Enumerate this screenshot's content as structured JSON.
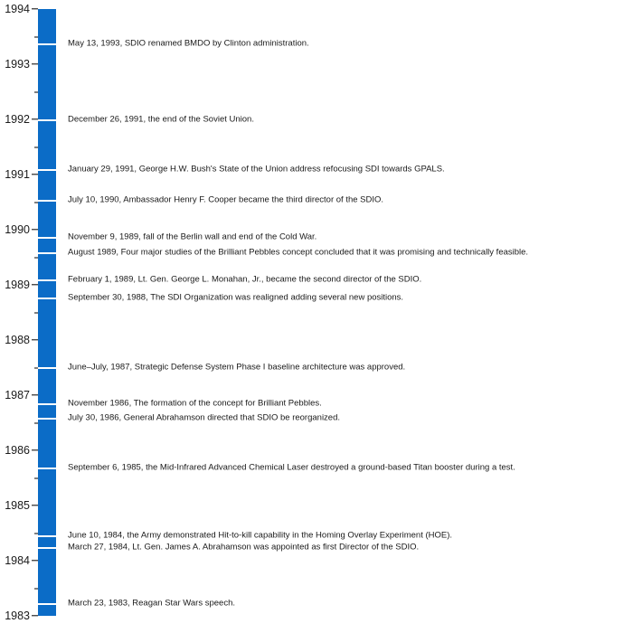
{
  "chart_data": {
    "type": "timeline",
    "title": "",
    "orientation": "vertical",
    "axis": {
      "label": "",
      "min": 1983,
      "max": 1994,
      "major_tick_interval": 1,
      "minor_tick_interval": 0.5,
      "tick_labels": [
        "1983",
        "1984",
        "1985",
        "1986",
        "1987",
        "1988",
        "1989",
        "1990",
        "1991",
        "1992",
        "1993",
        "1994"
      ]
    },
    "bar_color": "#0b6cc7",
    "event_marker_color": "#ffffff",
    "text_color": "#1a1a1a",
    "grid": false,
    "legend": false,
    "events": [
      {
        "year": 1993.36,
        "label": "May 13, 1993, SDIO renamed BMDO by Clinton administration."
      },
      {
        "year": 1991.99,
        "label": "December 26, 1991, the end of the Soviet Union."
      },
      {
        "year": 1991.08,
        "label": "January 29, 1991, George H.W. Bush's State of the Union address refocusing SDI towards GPALS."
      },
      {
        "year": 1990.52,
        "label": "July 10, 1990, Ambassador Henry F. Cooper became the third director of the SDIO."
      },
      {
        "year": 1989.86,
        "label": "November 9, 1989, fall of the Berlin wall and end of the Cold War."
      },
      {
        "year": 1989.58,
        "label": "August 1989, Four major studies of the Brilliant Pebbles concept concluded that it was promising and technically feasible."
      },
      {
        "year": 1989.09,
        "label": "February 1, 1989, Lt. Gen. George L. Monahan, Jr., became the second director of the SDIO."
      },
      {
        "year": 1988.75,
        "label": "September 30, 1988, The SDI Organization was realigned adding several new positions."
      },
      {
        "year": 1987.5,
        "label": "June–July, 1987, Strategic Defense System Phase I baseline architecture was approved."
      },
      {
        "year": 1986.84,
        "label": "November 1986, The formation of the concept for Brilliant Pebbles."
      },
      {
        "year": 1986.58,
        "label": "July 30, 1986, General Abrahamson directed that SDIO be reorganized."
      },
      {
        "year": 1985.68,
        "label": "September 6, 1985, the Mid-Infrared Advanced Chemical Laser destroyed a ground-based Titan booster during a test."
      },
      {
        "year": 1984.44,
        "label": "June 10, 1984, the Army demonstrated Hit-to-kill capability in the Homing Overlay Experiment (HOE)."
      },
      {
        "year": 1984.23,
        "label": "March 27, 1984, Lt. Gen. James A. Abrahamson was appointed as first Director of the SDIO."
      },
      {
        "year": 1983.22,
        "label": "March 23, 1983, Reagan Star Wars speech."
      }
    ]
  }
}
